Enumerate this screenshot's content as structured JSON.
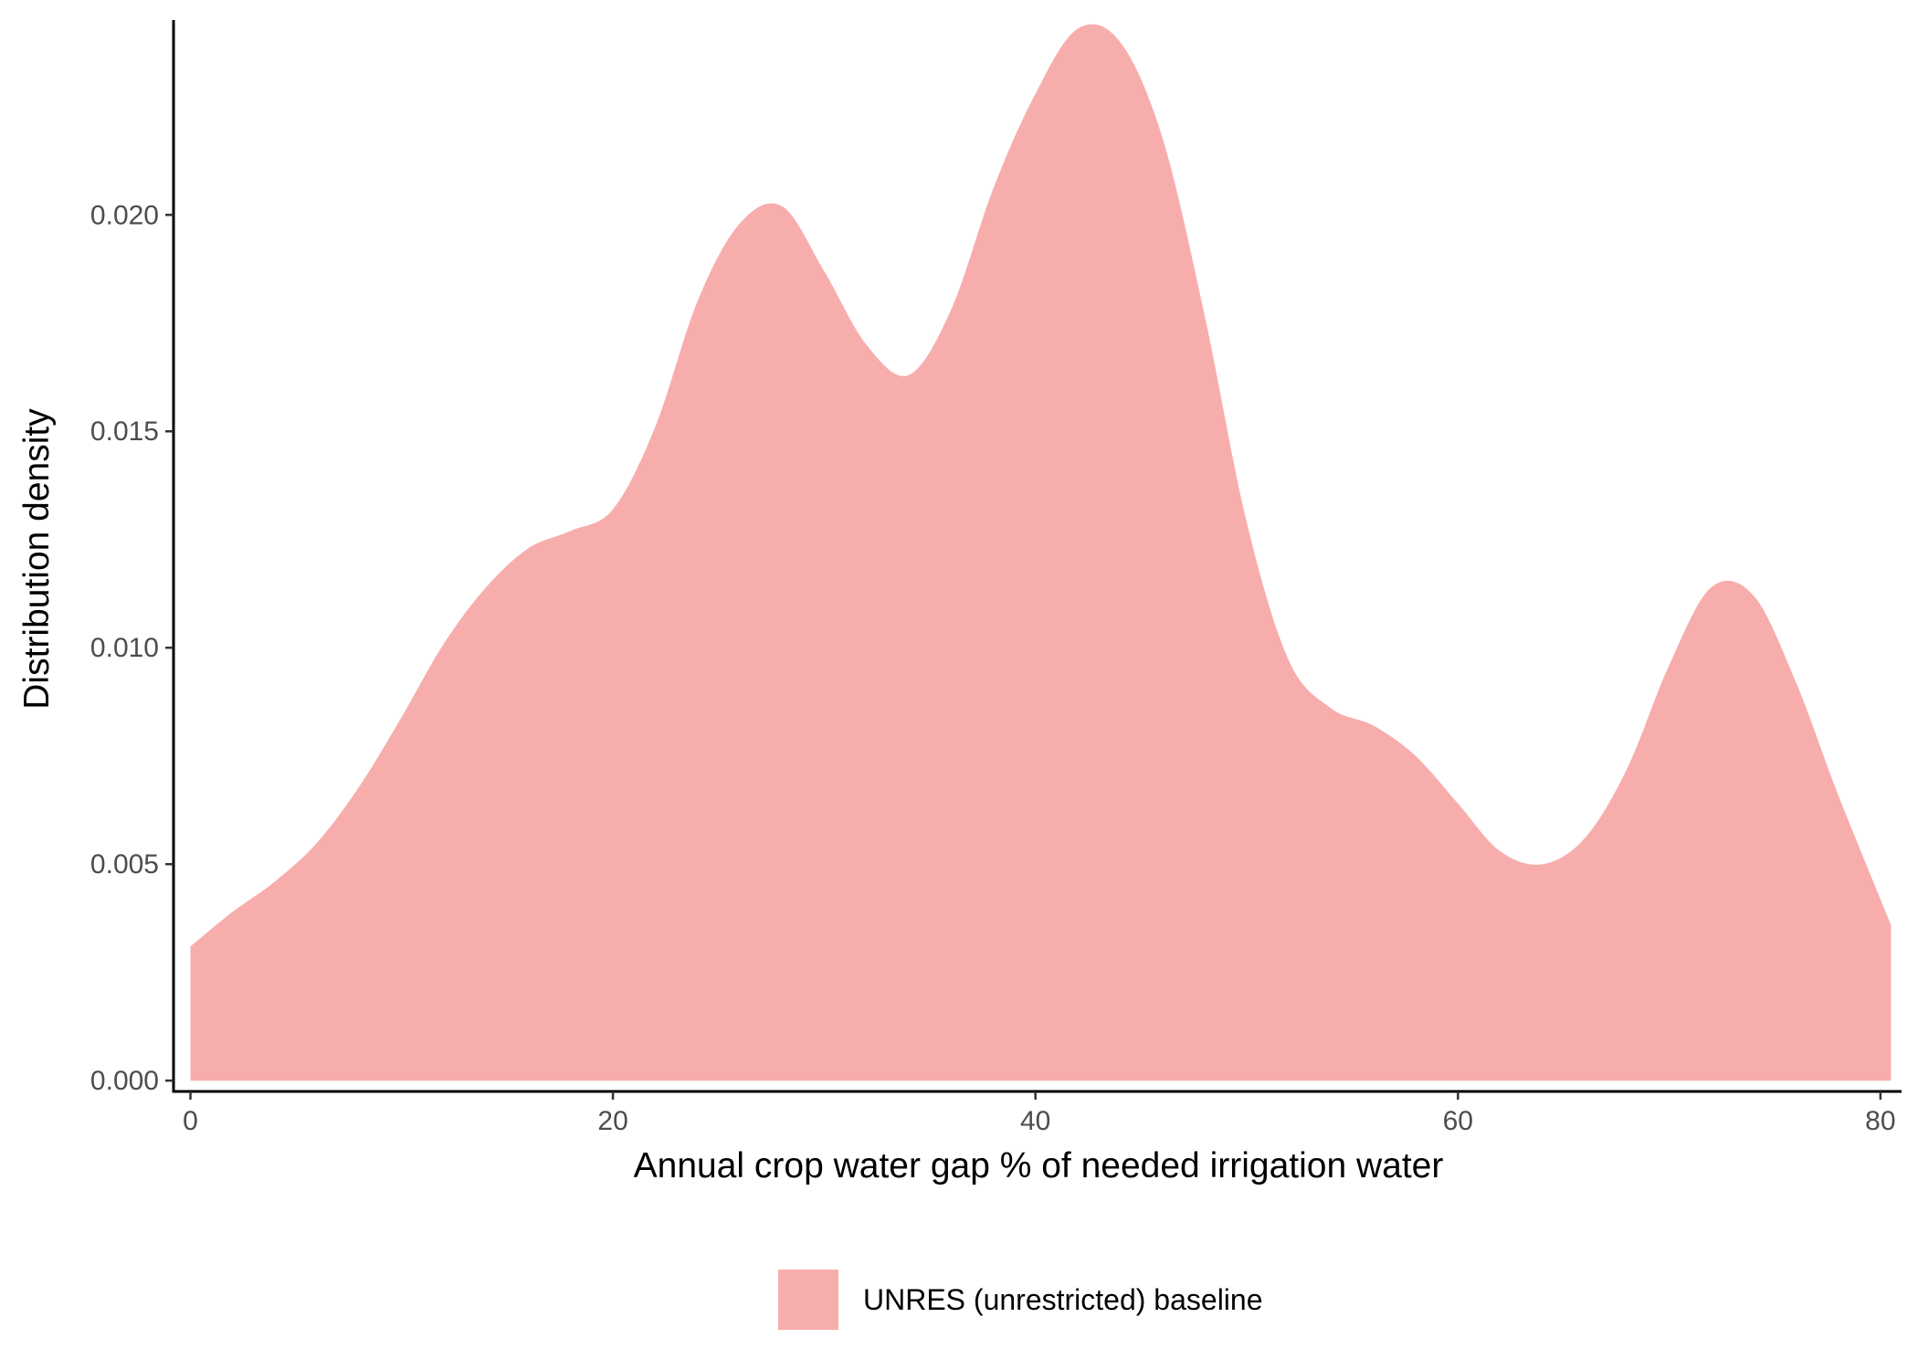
{
  "chart_data": {
    "type": "area",
    "xlabel": "Annual crop water gap % of needed irrigation water",
    "ylabel": "Distribution density",
    "xlim": [
      -0.8,
      81.0
    ],
    "ylim": [
      -0.00025,
      0.0245
    ],
    "x_ticks": [
      0,
      20,
      40,
      60,
      80
    ],
    "x_tick_labels": [
      "0",
      "20",
      "40",
      "60",
      "80"
    ],
    "y_ticks": [
      0,
      0.005,
      0.01,
      0.015,
      0.02
    ],
    "y_tick_labels": [
      "0.000",
      "0.005",
      "0.010",
      "0.015",
      "0.020"
    ],
    "grid": false,
    "legend_position": "bottom",
    "series": [
      {
        "name": "UNRES (unrestricted) baseline",
        "color": "#F8ADAD",
        "x": [
          0,
          2,
          4,
          6,
          8,
          10,
          12,
          14,
          16,
          18,
          20,
          22,
          24,
          26,
          28,
          30,
          32,
          34,
          36,
          38,
          40,
          42,
          44,
          46,
          48,
          50,
          52,
          54,
          56,
          58,
          60,
          62,
          64,
          66,
          68,
          70,
          72,
          74,
          76,
          78,
          80.5
        ],
        "y": [
          0.0031,
          0.0039,
          0.0046,
          0.0055,
          0.0068,
          0.0084,
          0.0101,
          0.0114,
          0.0123,
          0.0127,
          0.0132,
          0.0151,
          0.018,
          0.0198,
          0.0202,
          0.0187,
          0.017,
          0.0163,
          0.0178,
          0.0206,
          0.0228,
          0.0243,
          0.024,
          0.0218,
          0.0177,
          0.0129,
          0.0097,
          0.0086,
          0.0082,
          0.0075,
          0.0064,
          0.0053,
          0.005,
          0.0056,
          0.0072,
          0.0096,
          0.0114,
          0.0112,
          0.0092,
          0.0066,
          0.0036
        ]
      }
    ]
  }
}
